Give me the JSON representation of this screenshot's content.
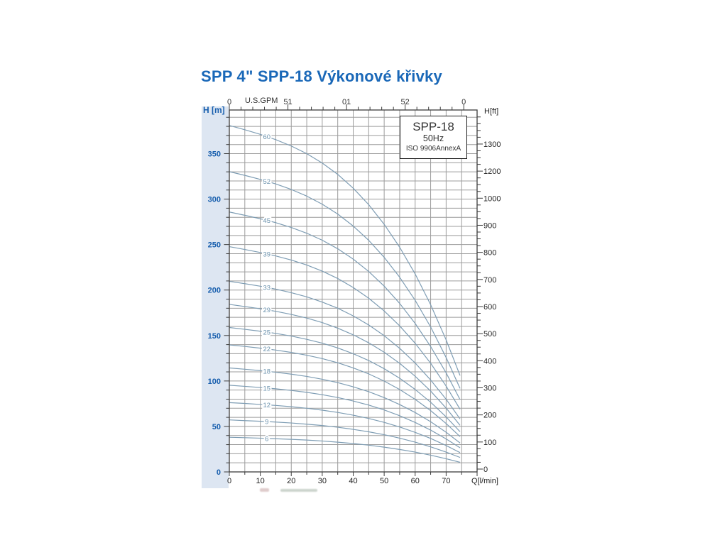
{
  "page": {
    "title": "SPP 4\" SPP-18 Výkonové křivky",
    "title_color": "#1a68b8"
  },
  "legend": {
    "model": "SPP-18",
    "frequency": "50Hz",
    "standard": "ISO 9906AnnexA"
  },
  "chart_data": {
    "type": "line",
    "title": "SPP 4\" SPP-18 Výkonové křivky",
    "left_axis": {
      "label": "H [m]",
      "ticks": [
        0,
        50,
        100,
        150,
        200,
        250,
        300,
        350
      ],
      "range_m": [
        0,
        398
      ],
      "minor_step_m": 10
    },
    "right_axis": {
      "label": "H[ft]",
      "tick_labels": [
        "1300",
        "1200",
        "1000",
        "900",
        "800",
        "700",
        "600",
        "500",
        "400",
        "300",
        "200",
        "100",
        "0"
      ]
    },
    "bottom_axis": {
      "label": "Q[l/min]",
      "ticks": [
        0,
        10,
        20,
        30,
        40,
        50,
        60,
        70
      ],
      "range": [
        0,
        80
      ],
      "minor_step": 5
    },
    "top_axis": {
      "label": "U.S.GPM",
      "tick_labels": [
        "0",
        "51",
        "01",
        "52",
        "0"
      ],
      "tick_values_gpm": [
        0,
        5,
        10,
        15,
        20
      ],
      "minor_step_gpm": 1,
      "lpm_per_gpm": 3.785
    },
    "grid": {
      "x_step_lpm": 5,
      "y_step_m": 10,
      "grid_on": true
    },
    "x": [
      0,
      5,
      10,
      15,
      20,
      25,
      30,
      35,
      40,
      45,
      50,
      55,
      60,
      65,
      70,
      74.5
    ],
    "curve_label_x": 12.1,
    "series": [
      {
        "name": "60",
        "values": [
          381.0,
          376.3,
          371.2,
          365.4,
          358.4,
          350.0,
          339.7,
          327.2,
          312.0,
          293.9,
          272.3,
          247.1,
          217.7,
          183.9,
          145.2,
          106.0
        ]
      },
      {
        "name": "52",
        "values": [
          330.2,
          326.1,
          321.7,
          316.7,
          310.6,
          303.3,
          294.4,
          283.6,
          270.4,
          254.7,
          236.0,
          214.1,
          188.7,
          159.4,
          125.8,
          91.8
        ]
      },
      {
        "name": "45",
        "values": [
          285.8,
          282.2,
          278.4,
          274.1,
          268.8,
          262.5,
          254.8,
          245.4,
          234.0,
          220.4,
          204.3,
          185.3,
          163.3,
          137.9,
          108.9,
          79.5
        ]
      },
      {
        "name": "39",
        "values": [
          247.7,
          244.6,
          241.3,
          237.5,
          233.0,
          227.5,
          220.8,
          212.7,
          202.8,
          191.0,
          177.0,
          160.6,
          141.5,
          119.5,
          94.4,
          68.9
        ]
      },
      {
        "name": "33",
        "values": [
          209.6,
          207.0,
          204.2,
          201.0,
          197.1,
          192.5,
          186.8,
          180.0,
          171.6,
          161.6,
          149.8,
          135.9,
          119.8,
          101.1,
          79.9,
          58.3
        ]
      },
      {
        "name": "29",
        "values": [
          184.2,
          181.9,
          179.4,
          176.6,
          173.2,
          169.2,
          164.2,
          158.1,
          150.8,
          142.0,
          131.6,
          119.4,
          105.2,
          88.9,
          70.2,
          51.2
        ]
      },
      {
        "name": "25",
        "values": [
          158.8,
          156.8,
          154.7,
          152.3,
          149.4,
          145.8,
          141.6,
          136.3,
          130.0,
          122.5,
          113.5,
          103.0,
          90.7,
          76.6,
          60.5,
          44.2
        ]
      },
      {
        "name": "22",
        "values": [
          139.7,
          138.0,
          136.1,
          134.0,
          131.4,
          128.3,
          124.6,
          120.0,
          114.4,
          107.8,
          99.9,
          90.6,
          79.8,
          67.4,
          53.2,
          38.9
        ]
      },
      {
        "name": "18",
        "values": [
          114.3,
          112.9,
          111.4,
          109.6,
          107.5,
          105.0,
          101.9,
          98.2,
          93.6,
          88.2,
          81.7,
          74.1,
          65.3,
          55.2,
          43.6,
          31.8
        ]
      },
      {
        "name": "15",
        "values": [
          95.3,
          94.1,
          92.8,
          91.4,
          89.6,
          87.5,
          84.9,
          81.8,
          78.0,
          73.5,
          68.1,
          61.8,
          54.4,
          46.0,
          36.3,
          26.5
        ]
      },
      {
        "name": "12",
        "values": [
          76.2,
          75.3,
          74.2,
          73.1,
          71.7,
          70.0,
          67.9,
          65.4,
          62.4,
          58.8,
          54.5,
          49.4,
          43.5,
          36.8,
          29.0,
          21.2
        ]
      },
      {
        "name": "9",
        "values": [
          57.2,
          56.4,
          55.7,
          54.8,
          53.8,
          52.5,
          51.0,
          49.1,
          46.8,
          44.1,
          40.9,
          37.1,
          32.7,
          27.6,
          21.8,
          15.9
        ]
      },
      {
        "name": "6",
        "values": [
          38.1,
          37.6,
          37.1,
          36.5,
          35.8,
          35.0,
          34.0,
          32.7,
          31.2,
          29.4,
          27.2,
          24.7,
          21.8,
          18.4,
          14.5,
          10.6
        ]
      }
    ],
    "colors": {
      "curve": "#7e9db4",
      "curve_label": "#6b92ad",
      "grid": "#9c9c9c",
      "frame": "#3c3c3c",
      "tick": "#3c3c3c",
      "axis_text": "#222222",
      "blue_text": "#185fae",
      "panel": "#dde6f2"
    }
  }
}
